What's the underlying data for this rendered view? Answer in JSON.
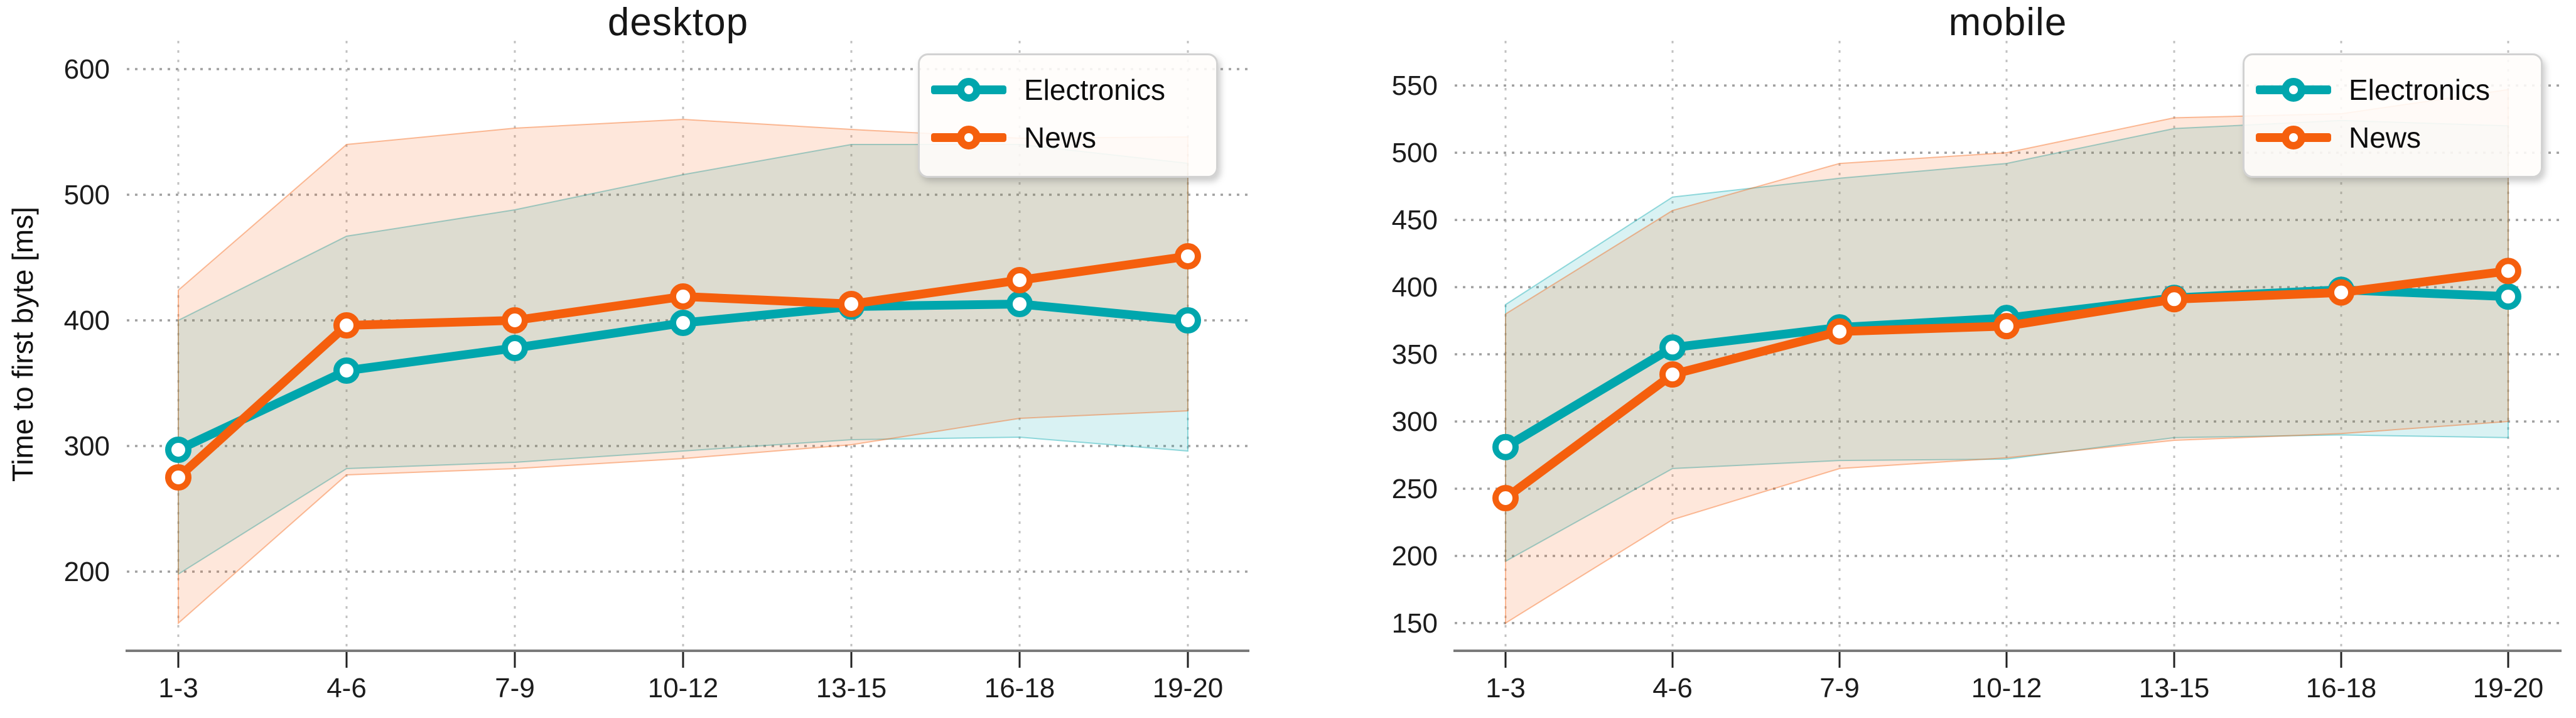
{
  "figure": {
    "background": "#ffffff",
    "ylabel": "Time to first byte [ms]"
  },
  "colors": {
    "electronics": "#00a6ad",
    "news": "#f55f0d",
    "electronics_band_fill": "rgba(0,166,173,0.15)",
    "news_band_fill": "rgba(245,95,13,0.15)",
    "electronics_band_edge": "rgba(0,166,173,0.40)",
    "news_band_edge": "rgba(245,95,13,0.40)",
    "grid_horizontal": "#a0a0a0",
    "grid_vertical": "#c2c2c2",
    "axis_spine": "#7a7a7a",
    "tick_mark": "#222222",
    "tick_label": "#1c1c1c",
    "legend_border": "#d2d2d2",
    "legend_background": "#fffdfa"
  },
  "chart_data": [
    {
      "type": "line",
      "title": "desktop",
      "ylabel": "Time to first byte [ms]",
      "xlabel": "",
      "categories": [
        "1-3",
        "4-6",
        "7-9",
        "10-12",
        "13-15",
        "16-18",
        "19-20"
      ],
      "yticks": [
        600,
        500,
        400,
        300,
        200
      ],
      "ylim": [
        137,
        625
      ],
      "grid": true,
      "legend_position": "top-right",
      "series": [
        {
          "name": "Electronics",
          "color_key": "electronics",
          "values": [
            297,
            360,
            378,
            398,
            411,
            413,
            400
          ],
          "band_low": [
            198,
            282,
            287,
            296,
            305,
            307,
            296
          ],
          "band_high": [
            400,
            467,
            488,
            516,
            540,
            540,
            525
          ]
        },
        {
          "name": "News",
          "color_key": "news",
          "values": [
            275,
            396,
            400,
            419,
            413,
            432,
            451
          ],
          "band_low": [
            159,
            277,
            282,
            290,
            301,
            322,
            328
          ],
          "band_high": [
            424,
            540,
            553,
            560,
            552,
            545,
            546
          ]
        }
      ]
    },
    {
      "type": "line",
      "title": "mobile",
      "ylabel": "",
      "xlabel": "",
      "categories": [
        "1-3",
        "4-6",
        "7-9",
        "10-12",
        "13-15",
        "16-18",
        "19-20"
      ],
      "yticks": [
        550,
        500,
        450,
        400,
        350,
        300,
        250,
        200,
        150
      ],
      "ylim": [
        129.4,
        585.6
      ],
      "grid": true,
      "legend_position": "top-right",
      "series": [
        {
          "name": "Electronics",
          "color_key": "electronics",
          "values": [
            281,
            355,
            370,
            377,
            392,
            398,
            393
          ],
          "band_low": [
            196,
            265,
            271,
            272,
            288,
            290,
            288
          ],
          "band_high": [
            387,
            467,
            481,
            492,
            518,
            524,
            520
          ]
        },
        {
          "name": "News",
          "color_key": "news",
          "values": [
            243,
            335,
            367,
            371,
            391,
            396,
            412
          ],
          "band_low": [
            150,
            227,
            265,
            273,
            286,
            291,
            300
          ],
          "band_high": [
            380,
            457,
            492,
            500,
            526,
            529,
            547
          ]
        }
      ]
    }
  ]
}
